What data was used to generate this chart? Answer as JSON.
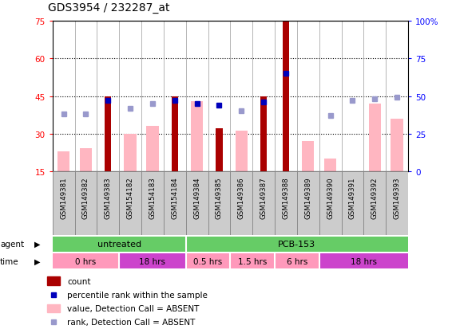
{
  "title": "GDS3954 / 232287_at",
  "samples": [
    "GSM149381",
    "GSM149382",
    "GSM149383",
    "GSM154182",
    "GSM154183",
    "GSM154184",
    "GSM149384",
    "GSM149385",
    "GSM149386",
    "GSM149387",
    "GSM149388",
    "GSM149389",
    "GSM149390",
    "GSM149391",
    "GSM149392",
    "GSM149393"
  ],
  "count_values": [
    null,
    null,
    45,
    null,
    null,
    45,
    null,
    32,
    null,
    45,
    75,
    null,
    null,
    null,
    null,
    null
  ],
  "pink_values": [
    23,
    24,
    null,
    30,
    33,
    null,
    43,
    null,
    31,
    null,
    null,
    27,
    20,
    null,
    42,
    36
  ],
  "blue_rank_values": [
    38,
    38,
    47,
    42,
    45,
    47,
    45,
    44,
    40,
    46,
    65,
    null,
    37,
    47,
    48,
    49
  ],
  "blue_rank_present": [
    false,
    false,
    true,
    false,
    false,
    true,
    true,
    true,
    false,
    true,
    true,
    false,
    false,
    false,
    false,
    false
  ],
  "ylim_left": [
    15,
    75
  ],
  "ylim_right": [
    0,
    100
  ],
  "yticks_left": [
    15,
    30,
    45,
    60,
    75
  ],
  "yticks_right": [
    0,
    25,
    50,
    75,
    100
  ],
  "agent_groups": [
    {
      "label": "untreated",
      "start": 0,
      "end": 6
    },
    {
      "label": "PCB-153",
      "start": 6,
      "end": 16
    }
  ],
  "time_groups": [
    {
      "label": "0 hrs",
      "start": 0,
      "end": 3,
      "is_18": false
    },
    {
      "label": "18 hrs",
      "start": 3,
      "end": 6,
      "is_18": true
    },
    {
      "label": "0.5 hrs",
      "start": 6,
      "end": 8,
      "is_18": false
    },
    {
      "label": "1.5 hrs",
      "start": 8,
      "end": 10,
      "is_18": false
    },
    {
      "label": "6 hrs",
      "start": 10,
      "end": 12,
      "is_18": false
    },
    {
      "label": "18 hrs",
      "start": 12,
      "end": 16,
      "is_18": true
    }
  ],
  "dark_red": "#AA0000",
  "pink": "#FFB6C1",
  "dark_blue": "#0000BB",
  "light_blue": "#9999CC",
  "green_agent": "#66CC66",
  "pink_time": "#FF99BB",
  "purple_time": "#CC44CC",
  "gray_box": "#CCCCCC"
}
